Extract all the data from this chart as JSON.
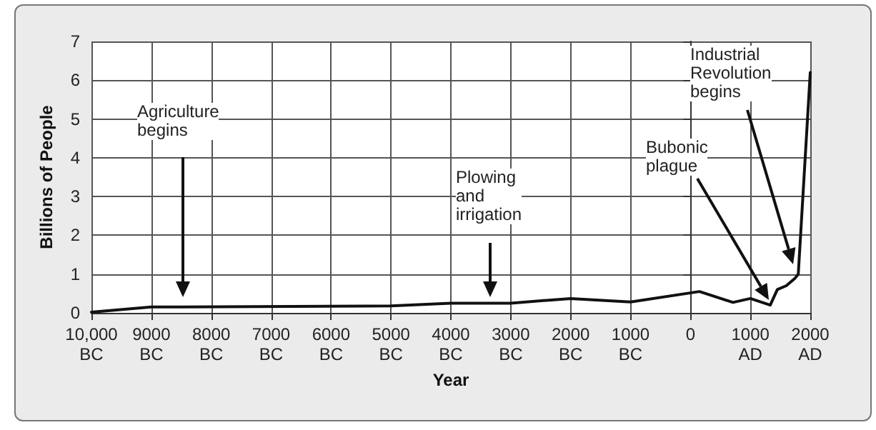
{
  "chart_data": {
    "type": "line",
    "xlabel": "Year",
    "ylabel": "Billions of People",
    "x": [
      -10000,
      -9000,
      -5000,
      -4000,
      -3000,
      -2000,
      -1000,
      150,
      710,
      1000,
      1332,
      1450,
      1600,
      1750,
      1800,
      2000
    ],
    "series": [
      {
        "color": "#111111",
        "values": [
          0.02,
          0.15,
          0.18,
          0.25,
          0.25,
          0.37,
          0.28,
          0.55,
          0.27,
          0.37,
          0.2,
          0.6,
          0.7,
          0.9,
          1.0,
          6.2
        ]
      }
    ],
    "xlim": [
      -10000,
      2000
    ],
    "xticks": [
      {
        "value": -10000,
        "label": "10,000\nBC"
      },
      {
        "value": -9000,
        "label": "9000\nBC"
      },
      {
        "value": -8000,
        "label": "8000\nBC"
      },
      {
        "value": -7000,
        "label": "7000\nBC"
      },
      {
        "value": -6000,
        "label": "6000\nBC"
      },
      {
        "value": -5000,
        "label": "5000\nBC"
      },
      {
        "value": -4000,
        "label": "4000\nBC"
      },
      {
        "value": -3000,
        "label": "3000\nBC"
      },
      {
        "value": -2000,
        "label": "2000\nBC"
      },
      {
        "value": -1000,
        "label": "1000\nBC"
      },
      0,
      {
        "value": 1000,
        "label": "1000\nAD"
      },
      {
        "value": 2000,
        "label": "2000\nAD"
      }
    ],
    "ylim": [
      0,
      7
    ],
    "yticks": [
      0,
      1,
      2,
      3,
      4,
      5,
      6,
      7
    ],
    "grid": true,
    "marker": "none",
    "line_style": "solid",
    "annotations": [
      "Agriculture\nbegins",
      "Plowing\nand\nirrigation",
      "Bubonic\nplague",
      "Industrial\nRevolution\nbegins"
    ]
  }
}
